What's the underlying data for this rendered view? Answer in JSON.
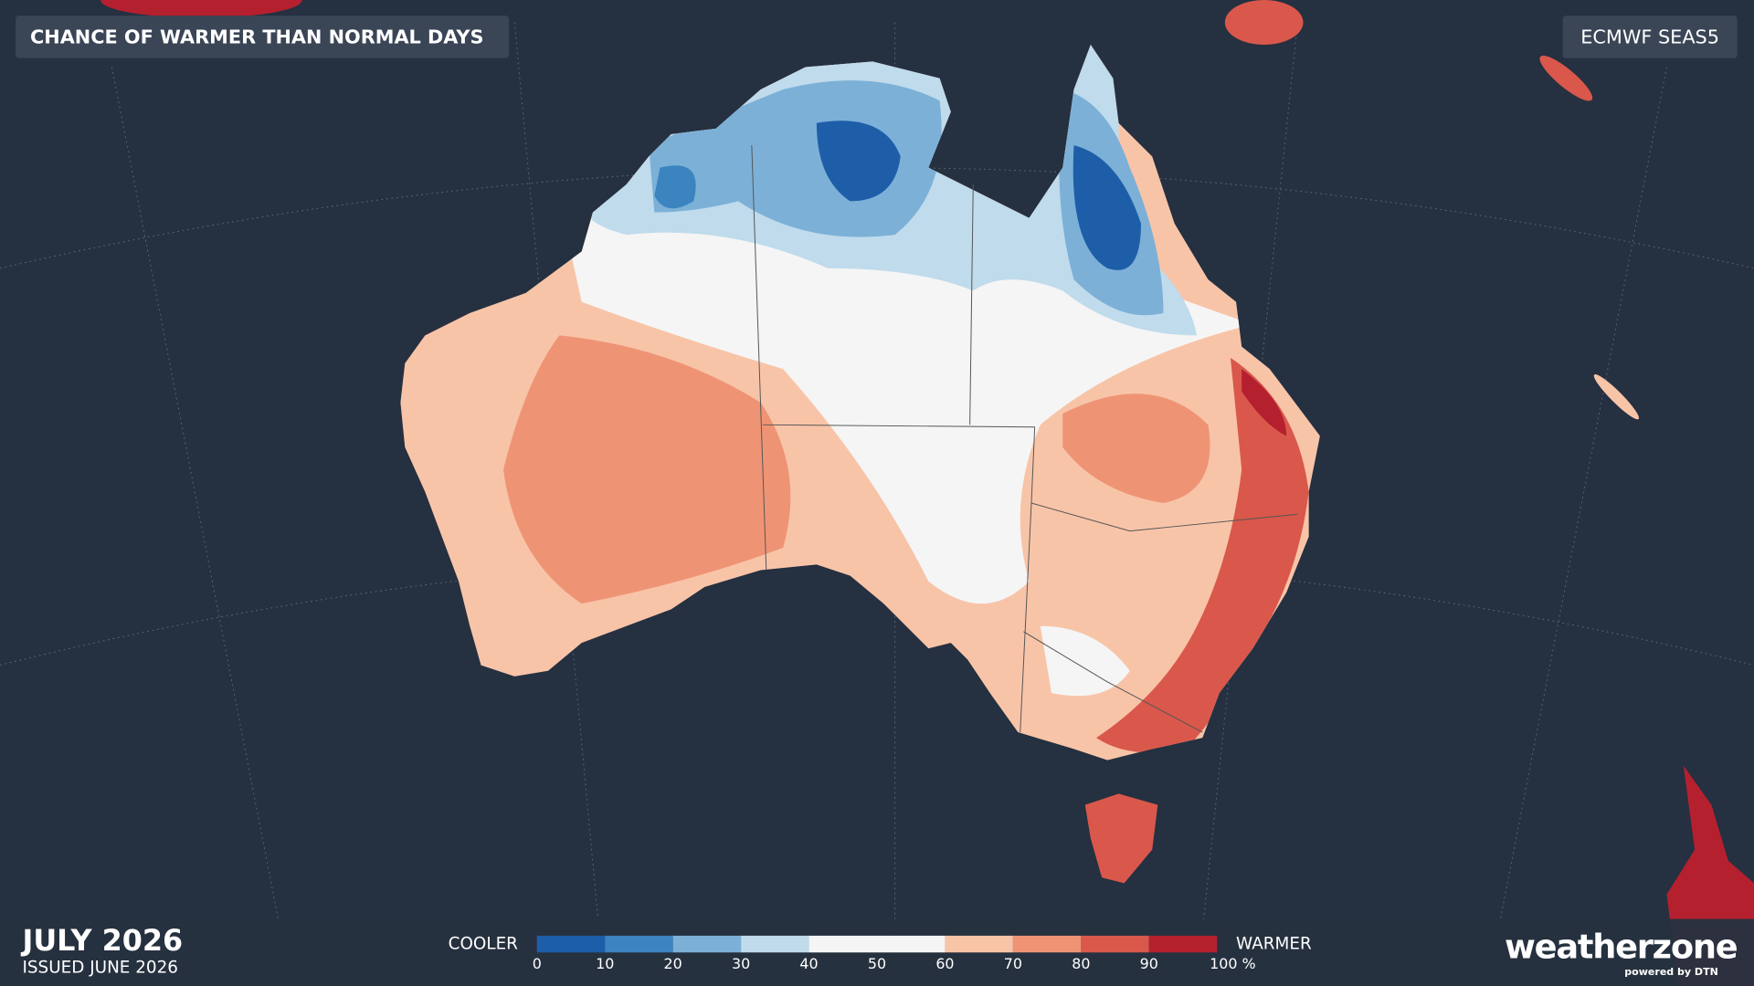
{
  "header": {
    "title": "CHANCE OF WARMER THAN NORMAL DAYS",
    "model": "ECMWF SEAS5"
  },
  "footer": {
    "month": "JULY 2026",
    "issued": "ISSUED JUNE 2026",
    "brand": "weatherzone",
    "brand_tagline": "powered by DTN"
  },
  "legend": {
    "low_label": "COOLER",
    "high_label": "WARMER",
    "ticks": [
      0,
      10,
      20,
      30,
      40,
      50,
      60,
      70,
      80,
      90,
      {
        "value": 100,
        "label": "100 %"
      }
    ],
    "colors": [
      "#1e5ea9",
      "#3b84c0",
      "#7cb0d7",
      "#bfdbec",
      "#f5f5f5",
      "#f5f5f5",
      "#f8c4a8",
      "#ee9475",
      "#d9584b",
      "#b5202f"
    ]
  }
}
